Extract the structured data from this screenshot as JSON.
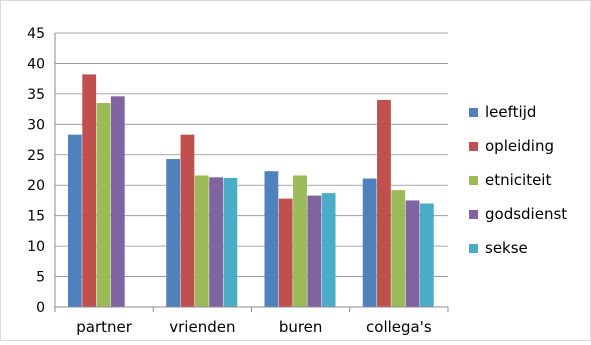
{
  "chart_data": {
    "type": "bar",
    "categories": [
      "partner",
      "vrienden",
      "buren",
      "collega's"
    ],
    "series": [
      {
        "name": "leeftijd",
        "color": "#4f81bd",
        "values": [
          28.3,
          24.3,
          22.3,
          21.1
        ]
      },
      {
        "name": "opleiding",
        "color": "#c0504d",
        "values": [
          38.2,
          28.3,
          17.8,
          34.0
        ]
      },
      {
        "name": "etniciteit",
        "color": "#9bbb59",
        "values": [
          33.5,
          21.6,
          21.6,
          19.2
        ]
      },
      {
        "name": "godsdienst",
        "color": "#8064a2",
        "values": [
          34.6,
          21.3,
          18.3,
          17.5
        ]
      },
      {
        "name": "sekse",
        "color": "#4bacc6",
        "values": [
          null,
          21.2,
          18.7,
          17.0
        ]
      }
    ],
    "yticks": [
      "0",
      "5",
      "10",
      "15",
      "20",
      "25",
      "30",
      "35",
      "40",
      "45"
    ],
    "ylim": [
      0,
      45
    ],
    "grid": true,
    "legend_position": "right"
  }
}
